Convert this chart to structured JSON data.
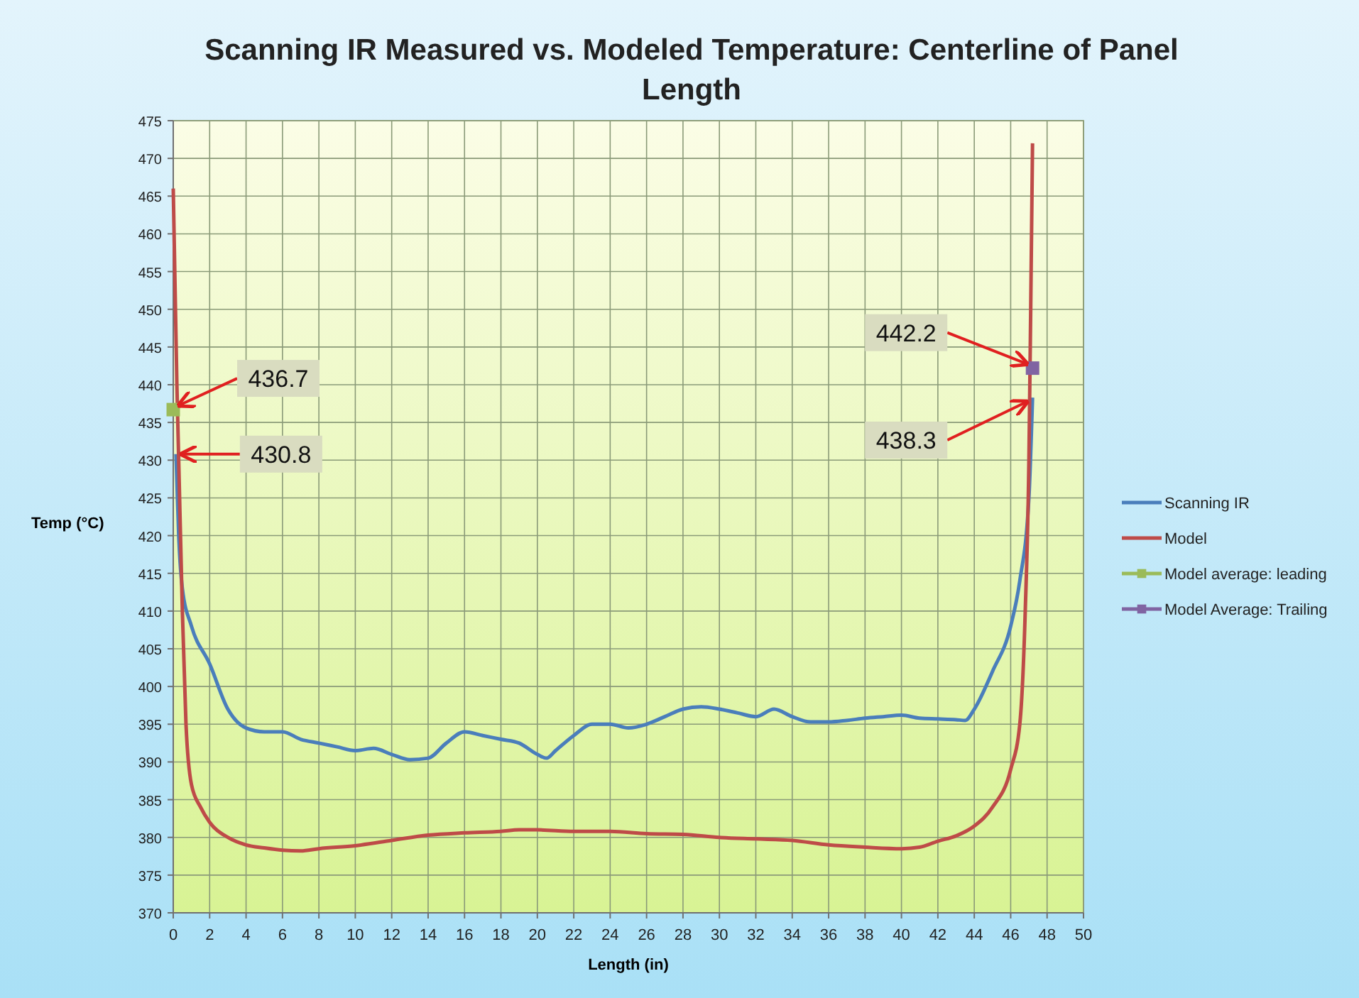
{
  "chart_data": {
    "type": "line",
    "title": "Scanning IR Measured  vs. Modeled Temperature:  Centerline of Panel Length",
    "xlabel": "Length (in)",
    "ylabel": "Temp (°C)",
    "xlim": [
      0,
      50
    ],
    "xticks": [
      0,
      2,
      4,
      6,
      8,
      10,
      12,
      14,
      16,
      18,
      20,
      22,
      24,
      26,
      28,
      30,
      32,
      34,
      36,
      38,
      40,
      42,
      44,
      46,
      48,
      50
    ],
    "ylim": [
      370,
      475
    ],
    "yticks": [
      370,
      375,
      380,
      385,
      390,
      395,
      400,
      405,
      410,
      415,
      420,
      425,
      430,
      435,
      440,
      445,
      450,
      455,
      460,
      465,
      470,
      475
    ],
    "grid": true,
    "legend": "right",
    "series": [
      {
        "name": "Scanning IR",
        "color": "#4a7ebb",
        "x": [
          0.15,
          0.3,
          0.5,
          1,
          2,
          3,
          4,
          5,
          6,
          7,
          8,
          9,
          10,
          11,
          12,
          13,
          14,
          15,
          16,
          17,
          18,
          19,
          20,
          20.5,
          21,
          22,
          23,
          24,
          25,
          26,
          27,
          28,
          29,
          30,
          31,
          32,
          33,
          34,
          35,
          36,
          37,
          38,
          39,
          40,
          41,
          42,
          43,
          43.5,
          44,
          45,
          46,
          46.5,
          47,
          47.2
        ],
        "values": [
          430.8,
          420,
          413,
          408,
          403,
          397,
          394.5,
          394,
          394,
          393,
          392.5,
          392,
          391.5,
          391.8,
          391,
          390.3,
          390.5,
          392.5,
          394,
          393.5,
          393,
          392.5,
          391,
          390.5,
          391.5,
          393.5,
          395,
          395,
          394.5,
          395,
          396,
          397,
          397.3,
          397,
          396.5,
          396,
          397,
          396,
          395.3,
          395.3,
          395.5,
          395.8,
          396,
          396.2,
          395.8,
          395.7,
          395.6,
          395.5,
          397,
          402,
          408,
          414,
          425,
          438.3
        ]
      },
      {
        "name": "Model",
        "color": "#be4b48",
        "x": [
          0,
          0.2,
          0.3,
          0.5,
          0.7,
          1,
          1.5,
          2,
          3,
          4,
          5,
          6,
          7,
          8,
          10,
          12,
          14,
          16,
          18,
          19,
          20,
          22,
          24,
          26,
          28,
          30,
          32,
          34,
          36,
          38,
          40,
          41,
          42,
          43,
          44,
          45,
          46,
          46.5,
          46.8,
          47,
          47.1,
          47.2
        ],
        "values": [
          466,
          440,
          430,
          410,
          395,
          387,
          384,
          382,
          380,
          379,
          378.6,
          378.3,
          378.2,
          378.5,
          378.9,
          379.6,
          380.3,
          380.6,
          380.8,
          381,
          381,
          380.8,
          380.8,
          380.5,
          380.4,
          380,
          379.8,
          379.6,
          379,
          378.7,
          378.5,
          378.7,
          379.5,
          380.2,
          381.5,
          384,
          389,
          395,
          410,
          430,
          450,
          472
        ]
      },
      {
        "name": "Model average: leading",
        "type": "scatter",
        "marker": "square",
        "color": "#9bbb59",
        "x": [
          0
        ],
        "values": [
          436.7
        ]
      },
      {
        "name": "Model Average: Trailing",
        "type": "scatter",
        "marker": "square",
        "color": "#8064a2",
        "x": [
          47.2
        ],
        "values": [
          442.2
        ]
      }
    ],
    "annotations": [
      {
        "text": "436.7",
        "x": 0,
        "y": 436.7
      },
      {
        "text": "430.8",
        "x": 0.15,
        "y": 430.8
      },
      {
        "text": "442.2",
        "x": 47.2,
        "y": 442.2
      },
      {
        "text": "438.3",
        "x": 47.2,
        "y": 438.3
      }
    ]
  }
}
